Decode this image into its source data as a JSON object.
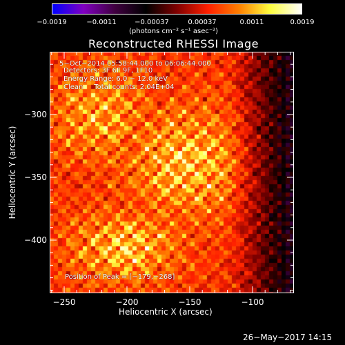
{
  "colorbar": {
    "tick_labels": [
      "−0.0019",
      "−0.0011",
      "−0.00037",
      "0.00037",
      "0.0011",
      "0.0019"
    ],
    "units": "(photons cm⁻² s⁻¹ asec⁻²)",
    "range": [
      -0.0019,
      0.0019
    ],
    "colors": [
      "#0000ff",
      "#8000c0",
      "#400040",
      "#000000",
      "#800000",
      "#ff2000",
      "#ff8000",
      "#ffff40",
      "#ffffff"
    ]
  },
  "title": "Reconstructed RHESSI Image",
  "annotations": {
    "time": "5−Oct−2014 05:58:44.000 to 06:06:44.000",
    "detectors": "Detectors: 3F 6F 9F, 1F10",
    "energy": "Energy Range: 6.0 − 12.0 keV",
    "clean": "Clean     Total counts: 2.04E+04",
    "peak": "Position of Peak = [−179,−268]"
  },
  "axes": {
    "xlabel": "Heliocentric X (arcsec)",
    "ylabel": "Heliocentric Y (arcsec)",
    "xticks": [
      "−250",
      "−200",
      "−150",
      "−100"
    ],
    "yticks": [
      "−300",
      "−350",
      "−400"
    ],
    "xlim": [
      -262,
      -68
    ],
    "ylim": [
      -442,
      -250
    ]
  },
  "date_stamp": "26−May−2017 14:15"
}
